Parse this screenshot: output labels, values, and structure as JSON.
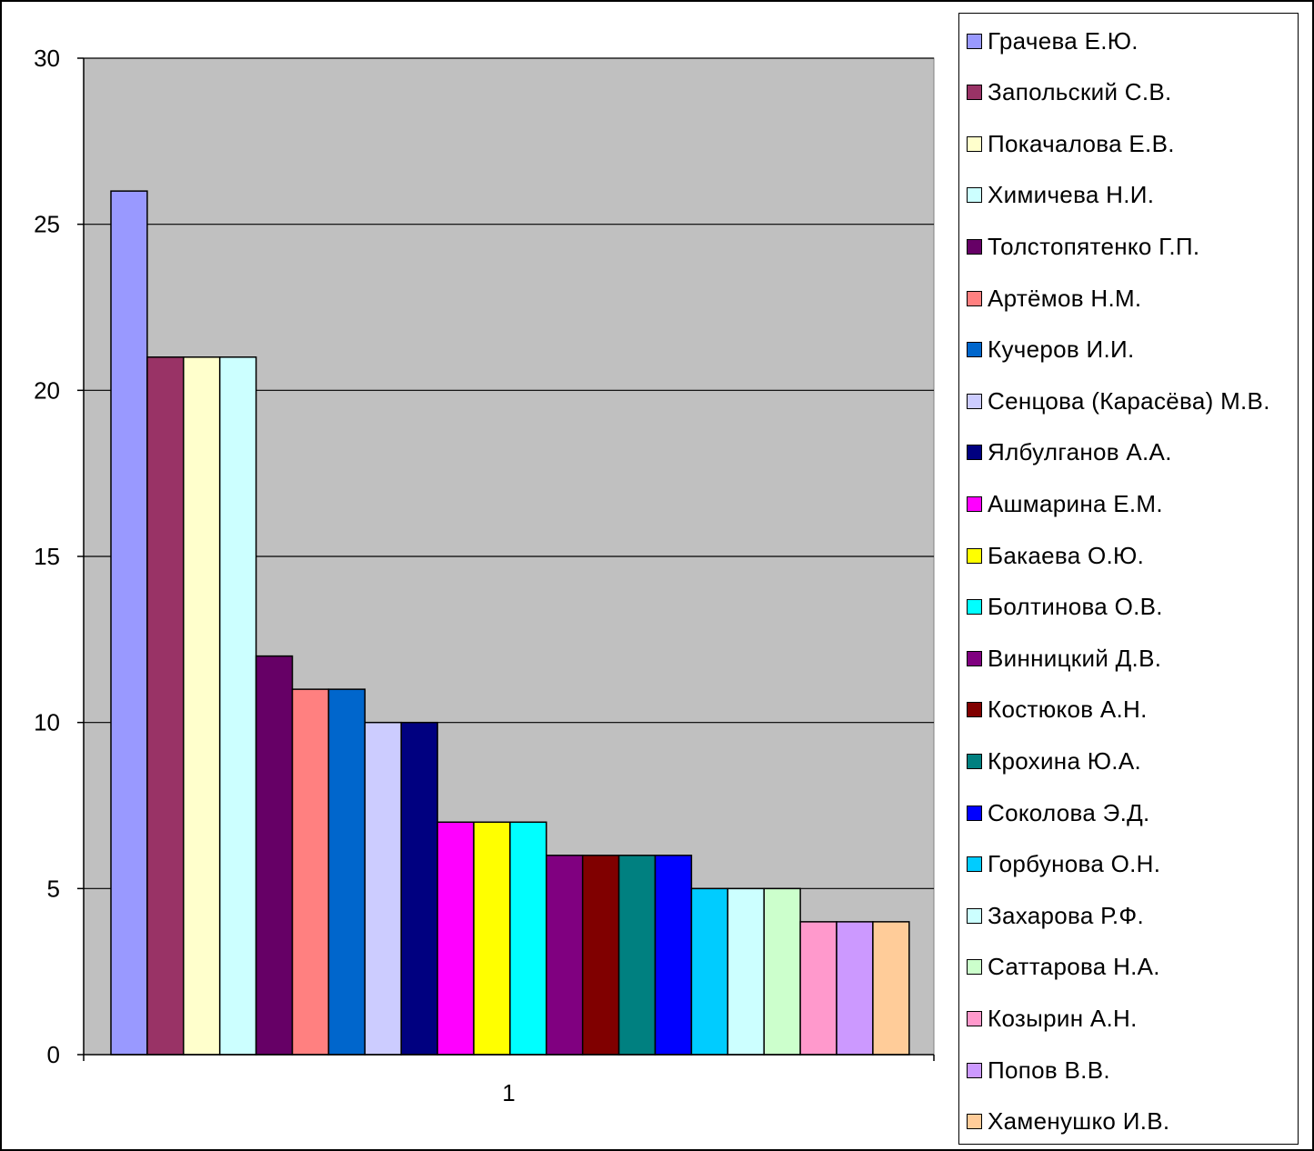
{
  "chart_data": {
    "type": "bar",
    "categories": [
      "1"
    ],
    "ylim": [
      0,
      30
    ],
    "yticks": [
      0,
      5,
      10,
      15,
      20,
      25,
      30
    ],
    "grid": true,
    "plot_background": "#C0C0C0",
    "legend_position": "right",
    "series": [
      {
        "name": "Грачева Е.Ю.",
        "values": [
          26
        ],
        "color": "#9999FF"
      },
      {
        "name": "Запольский  С.В.",
        "values": [
          21
        ],
        "color": "#993366"
      },
      {
        "name": "Покачалова  Е.В.",
        "values": [
          21
        ],
        "color": "#FFFFCC"
      },
      {
        "name": "Химичева  Н.И.",
        "values": [
          21
        ],
        "color": "#CCFFFF"
      },
      {
        "name": "Толстопятенко  Г.П.",
        "values": [
          12
        ],
        "color": "#660066"
      },
      {
        "name": "Артёмов Н.М.",
        "values": [
          11
        ],
        "color": "#FF8080"
      },
      {
        "name": "Кучеров И.И.",
        "values": [
          11
        ],
        "color": "#0066CC"
      },
      {
        "name": "Сенцова (Карасёва) М.В.",
        "values": [
          10
        ],
        "color": "#CCCCFF"
      },
      {
        "name": "Ялбулганов  А.А.",
        "values": [
          10
        ],
        "color": "#000080"
      },
      {
        "name": "Ашмарина  Е.М.",
        "values": [
          7
        ],
        "color": "#FF00FF"
      },
      {
        "name": "Бакаева  О.Ю.",
        "values": [
          7
        ],
        "color": "#FFFF00"
      },
      {
        "name": "Болтинова  О.В.",
        "values": [
          7
        ],
        "color": "#00FFFF"
      },
      {
        "name": "Винницкий  Д.В.",
        "values": [
          6
        ],
        "color": "#800080"
      },
      {
        "name": "Костюков А.Н.",
        "values": [
          6
        ],
        "color": "#800000"
      },
      {
        "name": "Крохина  Ю.А.",
        "values": [
          6
        ],
        "color": "#008080"
      },
      {
        "name": "Соколова  Э.Д.",
        "values": [
          6
        ],
        "color": "#0000FF"
      },
      {
        "name": "Горбунова  О.Н.",
        "values": [
          5
        ],
        "color": "#00CCFF"
      },
      {
        "name": "Захарова  Р.Ф.",
        "values": [
          5
        ],
        "color": "#CCFFFF"
      },
      {
        "name": "Саттарова  Н.А.",
        "values": [
          5
        ],
        "color": "#CCFFCC"
      },
      {
        "name": "Козырин А.Н.",
        "values": [
          4
        ],
        "color": "#FF99CC"
      },
      {
        "name": "Попов В.В.",
        "values": [
          4
        ],
        "color": "#CC99FF"
      },
      {
        "name": "Хаменушко  И.В.",
        "values": [
          4
        ],
        "color": "#FFCC99"
      }
    ]
  }
}
